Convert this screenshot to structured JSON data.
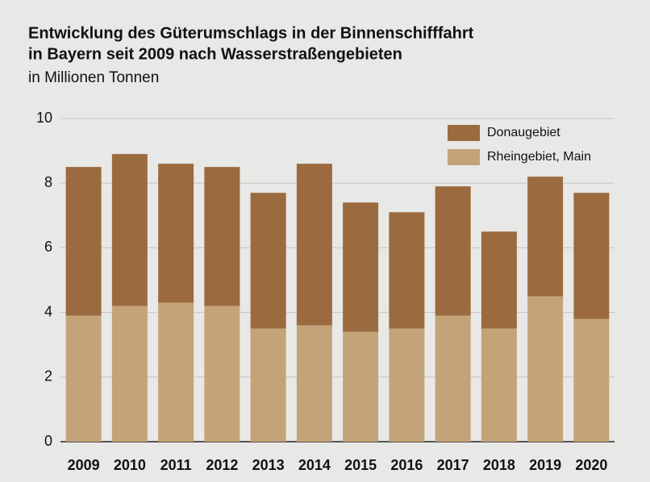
{
  "chart_data": {
    "type": "stacked_bar",
    "title": [
      "Entwicklung des Güterumschlags in der Binnenschifffahrt",
      "in Bayern seit 2009 nach Wasserstraßengebieten"
    ],
    "subtitle": "in Millionen Tonnen",
    "categories": [
      "2009",
      "2010",
      "2011",
      "2012",
      "2013",
      "2014",
      "2015",
      "2016",
      "2017",
      "2018",
      "2019",
      "2020"
    ],
    "series": [
      {
        "name": "Donaugebiet",
        "color": "#9b6a3f",
        "values": [
          4.6,
          4.7,
          4.3,
          4.3,
          4.2,
          5.0,
          4.0,
          3.6,
          4.0,
          3.0,
          3.7,
          3.9
        ]
      },
      {
        "name": "Rheingebiet, Main",
        "color": "#c4a379",
        "values": [
          3.9,
          4.2,
          4.3,
          4.2,
          3.5,
          3.6,
          3.4,
          3.5,
          3.9,
          3.5,
          4.5,
          3.8
        ]
      }
    ],
    "ylim": [
      0,
      10
    ],
    "yticks": [
      0,
      2,
      4,
      6,
      8,
      10
    ],
    "grid": true,
    "legend": "top-right"
  }
}
